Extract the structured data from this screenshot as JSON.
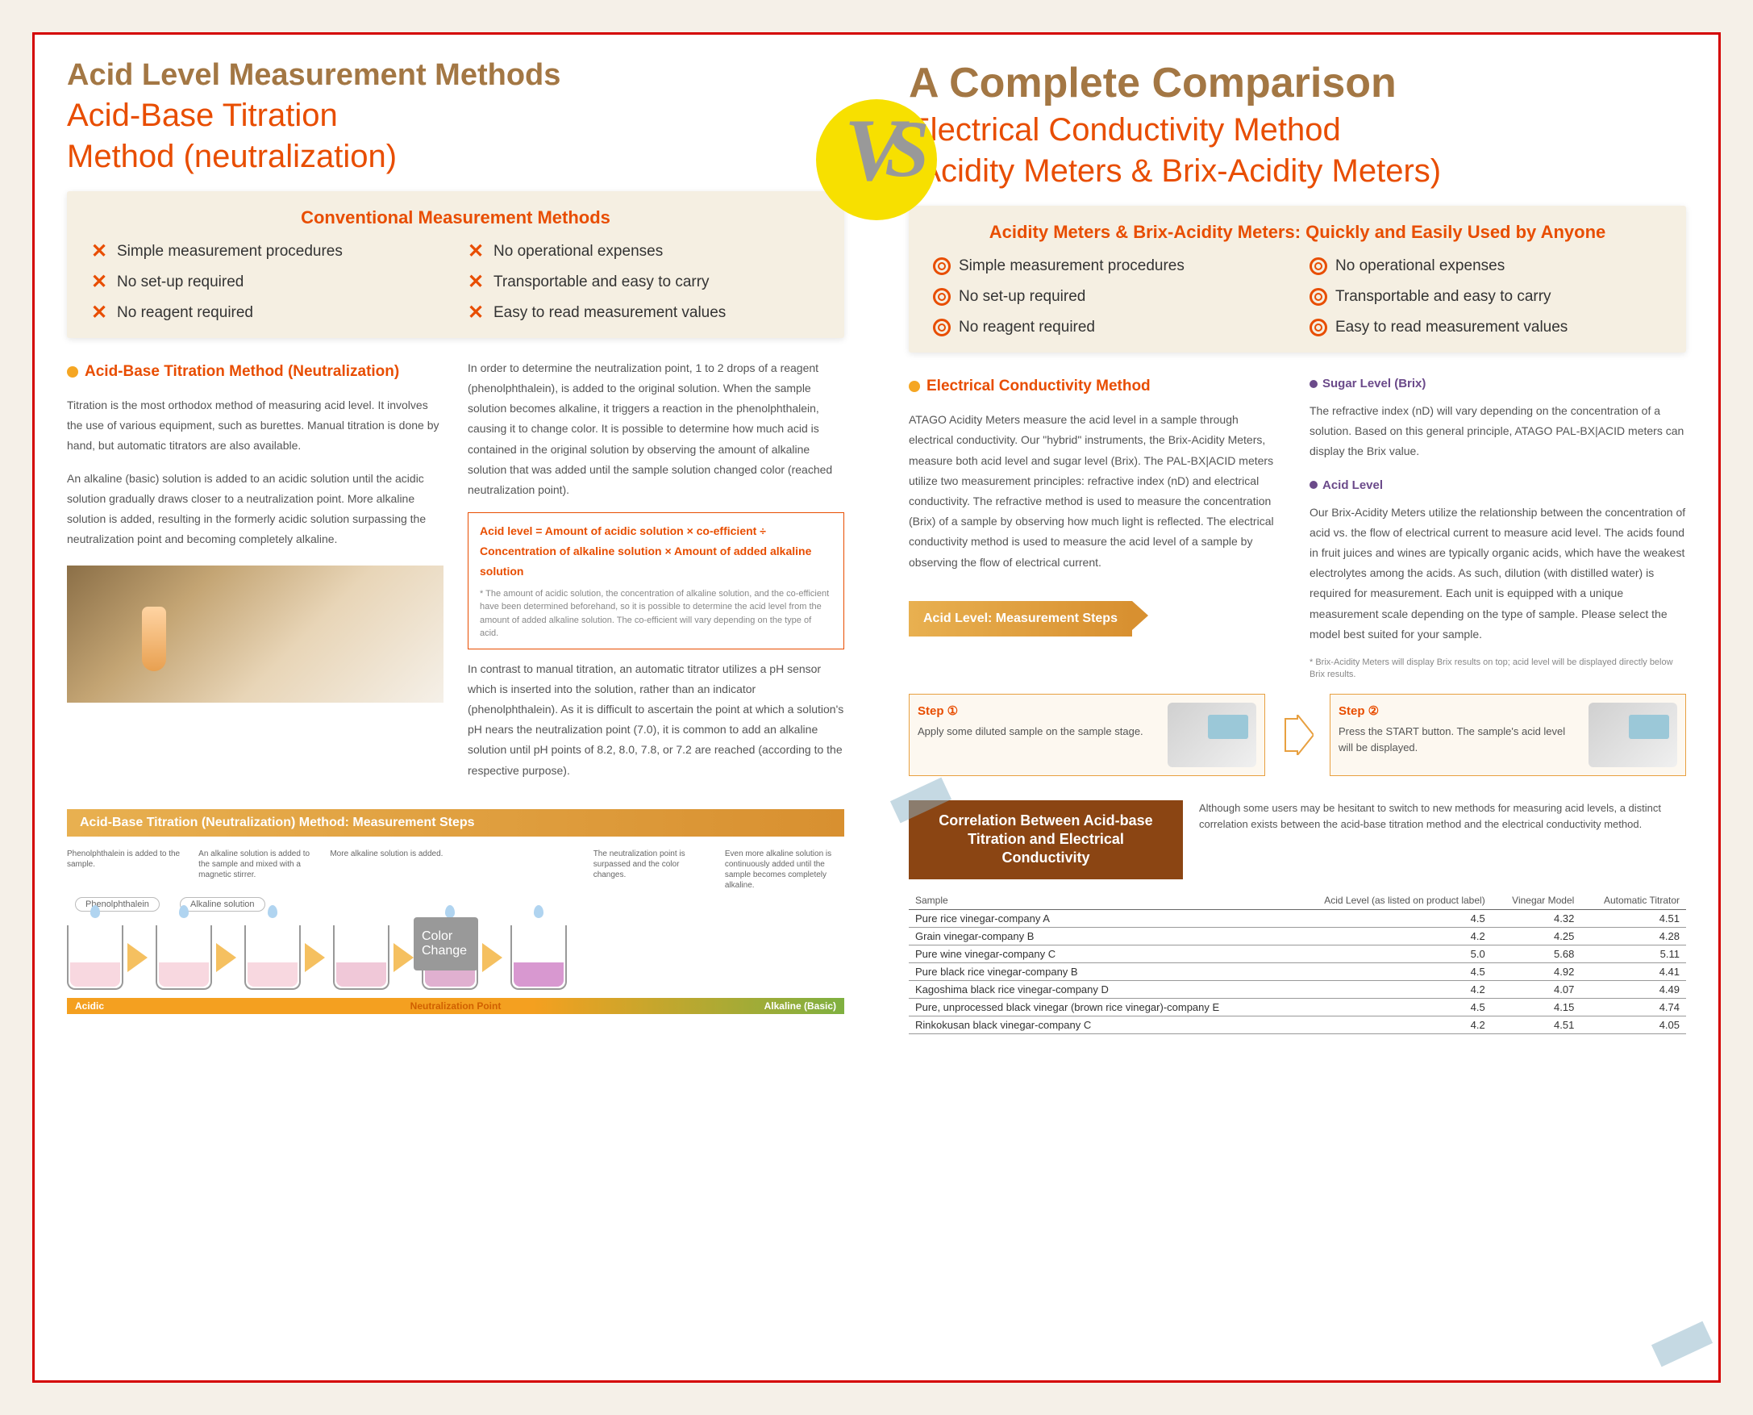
{
  "left": {
    "heading": "Acid Level Measurement Methods",
    "subheading1": "Acid-Base Titration",
    "subheading2": "Method (neutralization)",
    "panel_title": "Conventional Measurement Methods",
    "features": [
      "Simple measurement procedures",
      "No set-up required",
      "No reagent required",
      "No operational expenses",
      "Transportable and easy to carry",
      "Easy to read measurement values"
    ],
    "section_title": "Acid-Base Titration Method (Neutralization)",
    "p1": "Titration is the most orthodox method of measuring acid level. It involves the use of various equipment, such as burettes. Manual titration is done by hand, but automatic titrators are also available.",
    "p2": "An alkaline (basic) solution is added to an acidic solution until the acidic solution gradually draws closer to a neutralization point. More alkaline solution is added, resulting in the formerly acidic solution surpassing the neutralization point and becoming completely alkaline.",
    "p3": "In order to determine the neutralization point, 1 to 2 drops of a reagent (phenolphthalein), is added to the original solution. When the sample solution becomes alkaline, it triggers a reaction in the phenolphthalein, causing it to change color. It is possible to determine how much acid is contained in the original solution by observing the amount of alkaline solution that was added until the sample solution changed color (reached neutralization point).",
    "formula": "Acid level = Amount of acidic solution × co-efficient ÷ Concentration of alkaline solution × Amount of added alkaline solution",
    "formula_note": "* The amount of acidic solution, the concentration of alkaline solution, and the co-efficient have been determined beforehand, so it is possible to determine the acid level from the amount of added alkaline solution. The co-efficient will vary depending on the type of acid.",
    "p4": "In contrast to manual titration, an automatic titrator utilizes a pH sensor which is inserted into the solution, rather than an indicator (phenolphthalein). As it is difficult to ascertain the point at which a solution's pH nears the neutralization point (7.0), it is common to add an alkaline solution until pH points of 8.2, 8.0, 7.8, or 7.2 are reached (according to the respective purpose).",
    "steps_title": "Acid-Base Titration (Neutralization) Method: Measurement Steps",
    "diagram_labels": [
      "Phenolphthalein is added to the sample.",
      "An alkaline solution is added to the sample and mixed with a magnetic stirrer.",
      "More alkaline solution is added.",
      "",
      "The neutralization point is surpassed and the color changes.",
      "Even more alkaline solution is continuously added until the sample becomes completely alkaline."
    ],
    "pill1": "Phenolphthalein",
    "pill2": "Alkaline solution",
    "color_change": "Color Change",
    "bar_left": "Acidic",
    "bar_mid": "Neutralization Point",
    "bar_right": "Alkaline (Basic)",
    "beaker_colors": [
      "#f8d8e0",
      "#f8d8e0",
      "#f8d8e0",
      "#f0c8d8",
      "#e0b0d0",
      "#d898d0"
    ]
  },
  "right": {
    "heading": "A Complete Comparison",
    "subheading1": "Electrical Conductivity Method",
    "subheading2": "(Acidity Meters & Brix-Acidity Meters)",
    "panel_title": "Acidity Meters & Brix-Acidity Meters: Quickly and Easily Used by Anyone",
    "features": [
      "Simple measurement procedures",
      "No set-up required",
      "No reagent required",
      "No operational expenses",
      "Transportable and easy to carry",
      "Easy to read measurement values"
    ],
    "section_title": "Electrical Conductivity Method",
    "p1": "ATAGO Acidity Meters measure the acid level in a sample through electrical conductivity. Our \"hybrid\" instruments, the Brix-Acidity Meters, measure both acid level and sugar level (Brix). The PAL-BX|ACID meters utilize two measurement principles: refractive index (nD) and electrical conductivity. The refractive method is used to measure the concentration (Brix) of a sample by observing how much light is reflected. The electrical conductivity method is used to measure the acid level of a sample by observing the flow of electrical current.",
    "brix_title": "Sugar Level (Brix)",
    "brix_text": "The refractive index (nD) will vary depending on the concentration of a solution. Based on this general principle, ATAGO PAL-BX|ACID meters can display the Brix value.",
    "acid_title": "Acid Level",
    "acid_text": "Our Brix-Acidity Meters utilize the relationship between the concentration of acid vs. the flow of electrical current to measure acid level. The acids found in fruit juices and wines are typically organic acids, which have the weakest electrolytes among the acids. As such, dilution (with distilled water) is required for measurement. Each unit is equipped with a unique measurement scale depending on the type of sample. Please select the model best suited for your sample.",
    "steps_title": "Acid Level: Measurement Steps",
    "note": "* Brix-Acidity Meters will display Brix results on top; acid level will be displayed directly below Brix results.",
    "step1_title": "Step ①",
    "step1_text": "Apply some diluted sample on the sample stage.",
    "step2_title": "Step ②",
    "step2_text": "Press the START button. The sample's acid level will be displayed.",
    "corr_title": "Correlation Between Acid-base Titration and Electrical Conductivity",
    "corr_desc": "Although some users may be hesitant to switch to new methods for measuring acid levels, a distinct correlation exists between the acid-base titration method and the electrical conductivity method.",
    "table": {
      "headers": [
        "Sample",
        "Acid Level (as listed on product label)",
        "Vinegar Model",
        "Automatic Titrator"
      ],
      "rows": [
        [
          "Pure rice vinegar-company A",
          "4.5",
          "4.32",
          "4.51"
        ],
        [
          "Grain vinegar-company B",
          "4.2",
          "4.25",
          "4.28"
        ],
        [
          "Pure wine vinegar-company C",
          "5.0",
          "5.68",
          "5.11"
        ],
        [
          "Pure black rice vinegar-company B",
          "4.5",
          "4.92",
          "4.41"
        ],
        [
          "Kagoshima black rice vinegar-company D",
          "4.2",
          "4.07",
          "4.49"
        ],
        [
          "Pure, unprocessed black vinegar (brown rice vinegar)-company E",
          "4.5",
          "4.15",
          "4.74"
        ],
        [
          "Rinkokusan black vinegar-company C",
          "4.2",
          "4.51",
          "4.05"
        ]
      ]
    }
  },
  "colors": {
    "accent": "#e84d00",
    "brown": "#a37744",
    "yellow": "#f7e000",
    "purple": "#6b4a8a"
  }
}
